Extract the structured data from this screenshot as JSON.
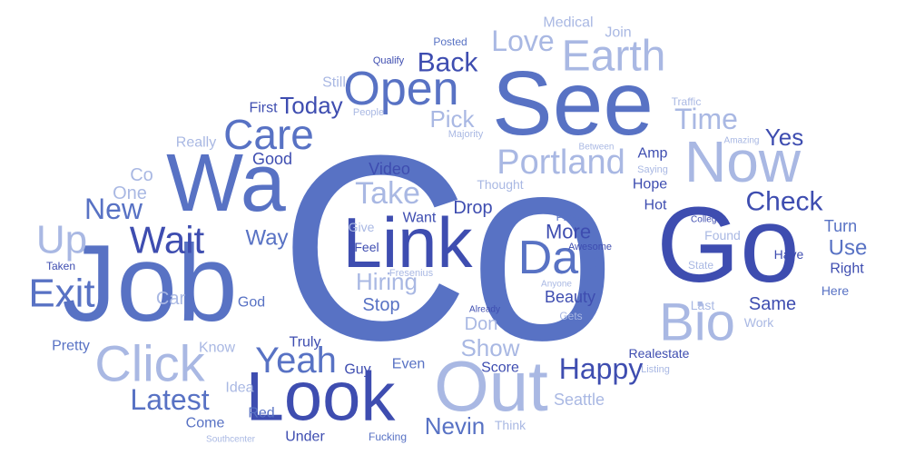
{
  "palette": {
    "dark": "#3e4db0",
    "mid": "#5872c4",
    "light": "#a9b8e3",
    "pale": "#c9d3ef"
  },
  "words": [
    {
      "text": "Co",
      "tone": "mid"
    },
    {
      "text": "Go",
      "tone": "dark"
    },
    {
      "text": "See",
      "tone": "mid"
    },
    {
      "text": "Link",
      "tone": "dark"
    },
    {
      "text": "Job",
      "tone": "mid"
    },
    {
      "text": "Look",
      "tone": "dark"
    },
    {
      "text": "Wa",
      "tone": "mid"
    },
    {
      "text": "Out",
      "tone": "light"
    },
    {
      "text": "Now",
      "tone": "light"
    },
    {
      "text": "Bio",
      "tone": "light"
    },
    {
      "text": "Day",
      "tone": "mid"
    },
    {
      "text": "Click",
      "tone": "light"
    },
    {
      "text": "Earth",
      "tone": "light"
    },
    {
      "text": "Open",
      "tone": "mid"
    },
    {
      "text": "Care",
      "tone": "mid"
    },
    {
      "text": "Portland",
      "tone": "light"
    },
    {
      "text": "Up",
      "tone": "light"
    },
    {
      "text": "Exit",
      "tone": "mid"
    },
    {
      "text": "Wait",
      "tone": "dark"
    },
    {
      "text": "Yeah",
      "tone": "mid"
    },
    {
      "text": "Happy",
      "tone": "dark"
    },
    {
      "text": "Latest",
      "tone": "mid"
    },
    {
      "text": "Love",
      "tone": "light"
    },
    {
      "text": "Time",
      "tone": "light"
    },
    {
      "text": "Check",
      "tone": "dark"
    },
    {
      "text": "Take",
      "tone": "light"
    },
    {
      "text": "New",
      "tone": "mid"
    },
    {
      "text": "Back",
      "tone": "dark"
    },
    {
      "text": "Nevin",
      "tone": "mid"
    },
    {
      "text": "Show",
      "tone": "light"
    },
    {
      "text": "Hiring",
      "tone": "light"
    },
    {
      "text": "Today",
      "tone": "dark"
    },
    {
      "text": "Yes",
      "tone": "dark"
    },
    {
      "text": "Pick",
      "tone": "light"
    },
    {
      "text": "More",
      "tone": "dark"
    },
    {
      "text": "Way",
      "tone": "mid"
    },
    {
      "text": "Drop",
      "tone": "dark"
    },
    {
      "text": "Use",
      "tone": "mid"
    },
    {
      "text": "Same",
      "tone": "dark"
    },
    {
      "text": "Don",
      "tone": "light"
    },
    {
      "text": "Stop",
      "tone": "mid"
    },
    {
      "text": "Beauty",
      "tone": "dark"
    },
    {
      "text": "Seattle",
      "tone": "light"
    },
    {
      "text": "Score",
      "tone": "dark"
    },
    {
      "text": "Turn",
      "tone": "mid"
    },
    {
      "text": "Good",
      "tone": "dark"
    },
    {
      "text": "Video",
      "tone": "dark"
    },
    {
      "text": "One",
      "tone": "light"
    },
    {
      "text": "Co",
      "tone": "light"
    },
    {
      "text": "Really",
      "tone": "light"
    },
    {
      "text": "First",
      "tone": "dark"
    },
    {
      "text": "Still",
      "tone": "light"
    },
    {
      "text": "Medical",
      "tone": "light"
    },
    {
      "text": "Join",
      "tone": "light"
    },
    {
      "text": "Posted",
      "tone": "mid"
    },
    {
      "text": "Qualify",
      "tone": "dark"
    },
    {
      "text": "People",
      "tone": "light"
    },
    {
      "text": "Majority",
      "tone": "light"
    },
    {
      "text": "Traffic",
      "tone": "light"
    },
    {
      "text": "Amazing",
      "tone": "light"
    },
    {
      "text": "Between",
      "tone": "light"
    },
    {
      "text": "Saying",
      "tone": "light"
    },
    {
      "text": "Thought",
      "tone": "light"
    },
    {
      "text": "Amp",
      "tone": "dark"
    },
    {
      "text": "Hope",
      "tone": "dark"
    },
    {
      "text": "Hot",
      "tone": "dark"
    },
    {
      "text": "College",
      "tone": "dark"
    },
    {
      "text": "Found",
      "tone": "light"
    },
    {
      "text": "Haye",
      "tone": "dark"
    },
    {
      "text": "Right",
      "tone": "dark"
    },
    {
      "text": "State",
      "tone": "light"
    },
    {
      "text": "Here",
      "tone": "mid"
    },
    {
      "text": "Last",
      "tone": "light"
    },
    {
      "text": "Work",
      "tone": "light"
    },
    {
      "text": "Please",
      "tone": "mid"
    },
    {
      "text": "Awesome",
      "tone": "dark"
    },
    {
      "text": "Anyone",
      "tone": "light"
    },
    {
      "text": "Gets",
      "tone": "light"
    },
    {
      "text": "Realestate",
      "tone": "dark"
    },
    {
      "text": "Listing",
      "tone": "light"
    },
    {
      "text": "Want",
      "tone": "dark"
    },
    {
      "text": "Give",
      "tone": "light"
    },
    {
      "text": "Feel",
      "tone": "dark"
    },
    {
      "text": "Fresenius",
      "tone": "light"
    },
    {
      "text": "Already",
      "tone": "dark"
    },
    {
      "text": "Truly",
      "tone": "dark"
    },
    {
      "text": "Guy",
      "tone": "dark"
    },
    {
      "text": "Even",
      "tone": "mid"
    },
    {
      "text": "Idea",
      "tone": "light"
    },
    {
      "text": "Red",
      "tone": "mid"
    },
    {
      "text": "Come",
      "tone": "mid"
    },
    {
      "text": "Under",
      "tone": "dark"
    },
    {
      "text": "Fucking",
      "tone": "mid"
    },
    {
      "text": "Think",
      "tone": "light"
    },
    {
      "text": "Southcenter",
      "tone": "light"
    },
    {
      "text": "Know",
      "tone": "light"
    },
    {
      "text": "Pretty",
      "tone": "mid"
    },
    {
      "text": "Taken",
      "tone": "dark"
    },
    {
      "text": "Car",
      "tone": "light"
    },
    {
      "text": "God",
      "tone": "mid"
    }
  ]
}
